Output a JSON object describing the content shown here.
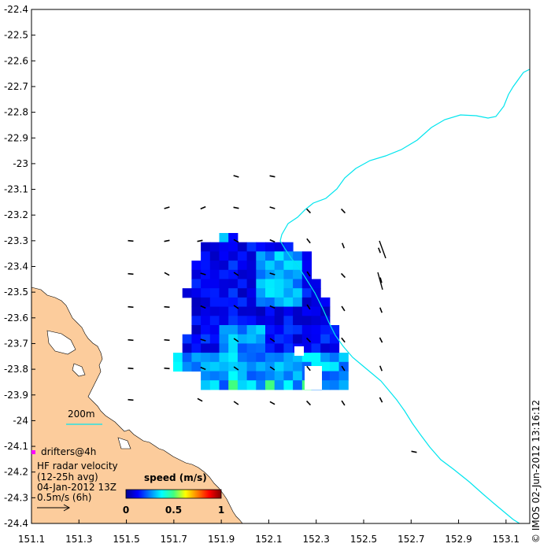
{
  "chart_data": {
    "type": "heatmap",
    "x_ticks": [
      "151.1",
      "151.3",
      "151.5",
      "151.7",
      "151.9",
      "152.1",
      "152.3",
      "152.5",
      "152.7",
      "152.9",
      "153.1"
    ],
    "y_ticks": [
      "-22.4",
      "-22.5",
      "-22.6",
      "-22.7",
      "-22.8",
      "-22.9",
      "-23",
      "-23.1",
      "-23.2",
      "-23.3",
      "-23.4",
      "-23.5",
      "-23.6",
      "-23.7",
      "-23.8",
      "-23.9",
      "-24",
      "-24.1",
      "-24.2",
      "-24.3",
      "-24.4"
    ],
    "xlim": [
      151.1,
      153.2
    ],
    "ylim": [
      -24.4,
      -22.4
    ],
    "scale_bar_label": "200m",
    "legend": {
      "drifters_label": "drifters@4h",
      "title_line1": "HF radar velocity",
      "title_line2": "(12-25h avg)",
      "date_line": "04-Jan-2012 13Z",
      "ref_label": "0.5m/s (6h)"
    },
    "colorbar": {
      "title": "speed (m/s)",
      "ticks": [
        "0",
        "0.5",
        "1"
      ],
      "range": [
        0,
        1
      ]
    },
    "stamp": "© IMOS 02-Jun-2012 13:16:12",
    "colors": {
      "land": "#fccc9c",
      "isobath": "#00e5ee",
      "drifter": "#ff00ff"
    }
  }
}
